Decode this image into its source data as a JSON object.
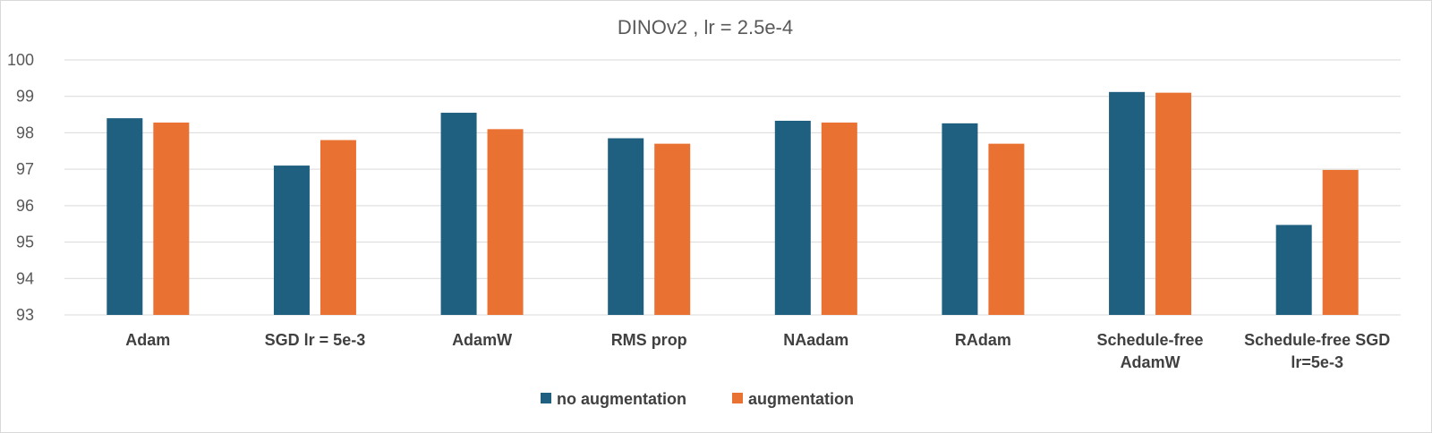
{
  "chart_data": {
    "type": "bar",
    "title": "DINOv2 , lr = 2.5e-4",
    "xlabel": "",
    "ylabel": "",
    "ylim": [
      93,
      100
    ],
    "yticks": [
      93,
      94,
      95,
      96,
      97,
      98,
      99,
      100
    ],
    "grid": true,
    "legend_position": "bottom",
    "categories": [
      [
        "Adam"
      ],
      [
        "SGD lr = 5e-3"
      ],
      [
        "AdamW"
      ],
      [
        "RMS prop"
      ],
      [
        "NAadam"
      ],
      [
        "RAdam"
      ],
      [
        "Schedule-free",
        "AdamW"
      ],
      [
        "Schedule-free SGD",
        "lr=5e-3"
      ]
    ],
    "series": [
      {
        "name": "no augmentation",
        "color": "#1f5f80",
        "values": [
          98.4,
          97.1,
          98.55,
          97.85,
          98.33,
          98.26,
          99.12,
          95.47
        ]
      },
      {
        "name": "augmentation",
        "color": "#e97132",
        "values": [
          98.28,
          97.8,
          98.1,
          97.7,
          98.28,
          97.7,
          99.1,
          96.98
        ]
      }
    ]
  }
}
